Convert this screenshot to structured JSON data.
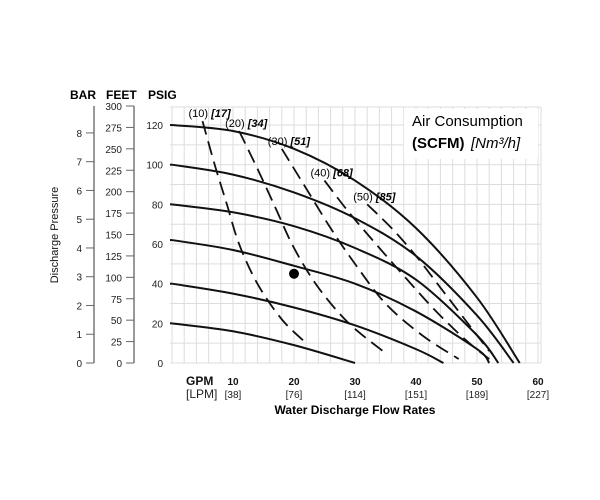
{
  "chart_data": {
    "type": "line",
    "title": "",
    "legend_title_line1": "Air Consumption",
    "legend_title_unit_bold": "(SCFM)",
    "legend_title_unit_italic": "[Nm³/h]",
    "xlabel": "Water Discharge Flow Rates",
    "ylabel": "Discharge Pressure",
    "x_unit_primary": "GPM",
    "x_unit_secondary": "[LPM]",
    "y_axis_headers": [
      "BAR",
      "FEET",
      "PSIG"
    ],
    "xlim": [
      0,
      60
    ],
    "ylim": [
      0,
      130
    ],
    "grid": true,
    "x_ticks": [
      {
        "gpm": "10",
        "lpm": "[38]"
      },
      {
        "gpm": "20",
        "lpm": "[76]"
      },
      {
        "gpm": "30",
        "lpm": "[114]"
      },
      {
        "gpm": "40",
        "lpm": "[151]"
      },
      {
        "gpm": "50",
        "lpm": "[189]"
      },
      {
        "gpm": "60",
        "lpm": "[227]"
      }
    ],
    "psig_ticks": [
      "0",
      "20",
      "40",
      "60",
      "80",
      "100",
      "120"
    ],
    "feet_ticks": [
      "0",
      "25",
      "50",
      "75",
      "100",
      "125",
      "150",
      "175",
      "200",
      "225",
      "250",
      "275",
      "300"
    ],
    "bar_ticks": [
      "0",
      "1",
      "2",
      "3",
      "4",
      "5",
      "6",
      "7",
      "8"
    ],
    "series": [
      {
        "name": "120 PSIG",
        "x": [
          0,
          10,
          20,
          30,
          40,
          50,
          57
        ],
        "y": [
          120,
          117,
          108,
          92,
          68,
          33,
          0
        ]
      },
      {
        "name": "100 PSIG",
        "x": [
          0,
          10,
          20,
          30,
          40,
          50,
          56
        ],
        "y": [
          100,
          95,
          86,
          73,
          54,
          24,
          0
        ]
      },
      {
        "name": "80 PSIG",
        "x": [
          0,
          10,
          20,
          30,
          40,
          50,
          53.5
        ],
        "y": [
          80,
          76,
          69,
          58,
          42,
          14,
          0
        ]
      },
      {
        "name": "60 PSIG",
        "x": [
          0,
          10,
          20,
          30,
          40,
          50,
          52
        ],
        "y": [
          62,
          57,
          49,
          40,
          26,
          7,
          0
        ]
      },
      {
        "name": "40 PSIG",
        "x": [
          0,
          10,
          20,
          30,
          40,
          44.5
        ],
        "y": [
          40,
          35,
          28,
          19,
          7,
          0
        ]
      },
      {
        "name": "20 PSIG",
        "x": [
          0,
          10,
          20,
          30
        ],
        "y": [
          20,
          16,
          9,
          0
        ]
      }
    ],
    "air_consumption_series": [
      {
        "name": "(10)",
        "metric": "[17]",
        "x": [
          5,
          7,
          9,
          11,
          14,
          18,
          22
        ],
        "y": [
          122,
          100,
          80,
          60,
          40,
          22,
          10
        ]
      },
      {
        "name": "(20)",
        "metric": "[34]",
        "x": [
          11,
          14,
          17,
          20,
          24,
          29,
          35
        ],
        "y": [
          117,
          98,
          78,
          58,
          38,
          20,
          5
        ]
      },
      {
        "name": "(30)",
        "metric": "[51]",
        "x": [
          18,
          22,
          26,
          30,
          35,
          41,
          47
        ],
        "y": [
          108,
          88,
          68,
          50,
          30,
          14,
          2
        ]
      },
      {
        "name": "(40)",
        "metric": "[68]",
        "x": [
          25,
          29,
          34,
          38,
          43,
          48,
          52
        ],
        "y": [
          92,
          76,
          58,
          44,
          27,
          12,
          2
        ]
      },
      {
        "name": "(50)",
        "metric": "[85]",
        "x": [
          32,
          36,
          40,
          44,
          48,
          52
        ],
        "y": [
          80,
          68,
          54,
          38,
          22,
          6
        ]
      }
    ],
    "operating_point": {
      "x": 20,
      "y": 45
    }
  }
}
